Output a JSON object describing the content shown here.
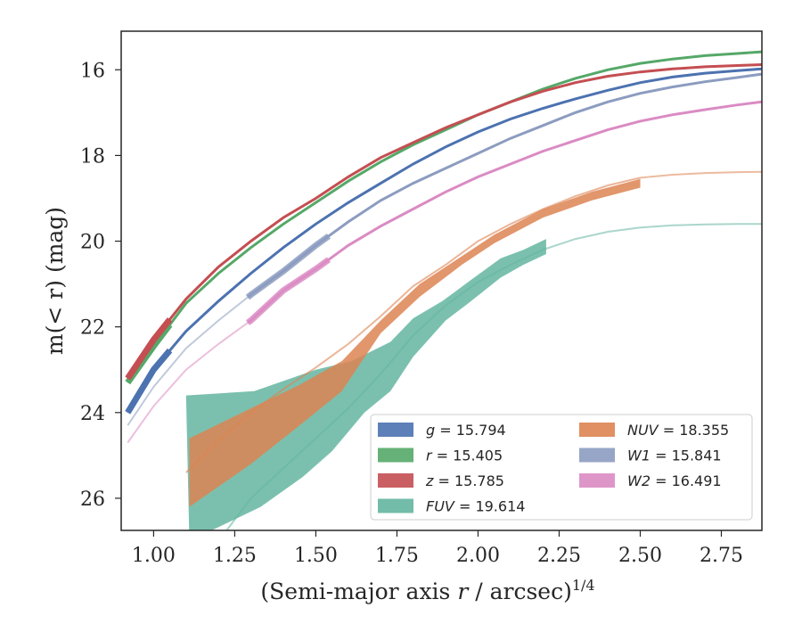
{
  "chart_data": {
    "type": "line",
    "xlabel_main": "(Semi-major axis ",
    "xlabel_var": "r",
    "xlabel_unit": " / arcsec)",
    "xlabel_exp": "1/4",
    "ylabel_main": "m(< r) (mag)",
    "xlim": [
      0.9,
      2.875
    ],
    "ylim": [
      26.75,
      15.1
    ],
    "y_inverted": true,
    "xticks": [
      1.0,
      1.25,
      1.5,
      1.75,
      2.0,
      2.25,
      2.5,
      2.75
    ],
    "xtick_labels": [
      "1.00",
      "1.25",
      "1.50",
      "1.75",
      "2.00",
      "2.25",
      "2.50",
      "2.75"
    ],
    "yticks": [
      16,
      18,
      20,
      22,
      24,
      26
    ],
    "ytick_labels": [
      "16",
      "18",
      "20",
      "22",
      "24",
      "26"
    ],
    "legend_location": "lower-right",
    "series": [
      {
        "name": "g = 15.794",
        "legend_var": "g",
        "legend_value": "= 15.794",
        "color": "#4c72b0",
        "x": [
          0.92,
          1.0,
          1.1,
          1.2,
          1.3,
          1.4,
          1.5,
          1.6,
          1.7,
          1.8,
          1.9,
          2.0,
          2.1,
          2.2,
          2.3,
          2.4,
          2.5,
          2.6,
          2.7,
          2.8,
          2.875
        ],
        "y": [
          24.0,
          23.0,
          22.1,
          21.4,
          20.75,
          20.15,
          19.6,
          19.1,
          18.65,
          18.2,
          17.8,
          17.45,
          17.15,
          16.9,
          16.68,
          16.48,
          16.3,
          16.17,
          16.08,
          16.02,
          15.98
        ],
        "band": [
          {
            "x0": 0.92,
            "x1": 1.05,
            "width": 0.25
          },
          {
            "x0": 1.05,
            "x1": 2.875,
            "width": 0.06
          }
        ]
      },
      {
        "name": "r = 15.405",
        "legend_var": "r",
        "legend_value": "= 15.405",
        "color": "#55a868",
        "x": [
          0.92,
          1.0,
          1.1,
          1.2,
          1.3,
          1.4,
          1.5,
          1.6,
          1.7,
          1.8,
          1.9,
          2.0,
          2.1,
          2.2,
          2.3,
          2.4,
          2.5,
          2.6,
          2.7,
          2.8,
          2.875
        ],
        "y": [
          23.3,
          22.45,
          21.45,
          20.75,
          20.15,
          19.6,
          19.1,
          18.6,
          18.15,
          17.75,
          17.4,
          17.05,
          16.75,
          16.45,
          16.2,
          16.0,
          15.85,
          15.75,
          15.67,
          15.62,
          15.58
        ],
        "band": [
          {
            "x0": 0.92,
            "x1": 1.05,
            "width": 0.25
          },
          {
            "x0": 1.05,
            "x1": 2.875,
            "width": 0.06
          }
        ]
      },
      {
        "name": "z = 15.785",
        "legend_var": "z",
        "legend_value": "= 15.785",
        "color": "#c44e52",
        "x": [
          0.92,
          1.0,
          1.1,
          1.2,
          1.3,
          1.4,
          1.5,
          1.6,
          1.7,
          1.8,
          1.9,
          2.0,
          2.1,
          2.2,
          2.3,
          2.4,
          2.5,
          2.6,
          2.7,
          2.8,
          2.875
        ],
        "y": [
          23.2,
          22.3,
          21.35,
          20.6,
          20.0,
          19.45,
          19.0,
          18.5,
          18.05,
          17.7,
          17.35,
          17.05,
          16.75,
          16.5,
          16.3,
          16.15,
          16.05,
          15.98,
          15.93,
          15.9,
          15.88
        ],
        "band": [
          {
            "x0": 0.92,
            "x1": 1.05,
            "width": 0.25
          },
          {
            "x0": 1.05,
            "x1": 2.875,
            "width": 0.06
          }
        ]
      },
      {
        "name": "FUV = 19.614",
        "legend_var": "FUV",
        "legend_value": "= 19.614",
        "color": "#64b5a0",
        "x": [
          1.2,
          1.3,
          1.4,
          1.5,
          1.6,
          1.7,
          1.8,
          1.9,
          2.0,
          2.1,
          2.2,
          2.3,
          2.4,
          2.5,
          2.6,
          2.7,
          2.8,
          2.875
        ],
        "y": [
          27.0,
          26.0,
          25.3,
          24.6,
          23.9,
          23.1,
          22.2,
          21.5,
          20.95,
          20.55,
          20.2,
          19.95,
          19.78,
          19.68,
          19.63,
          19.61,
          19.6,
          19.6
        ],
        "region": {
          "upper_x": [
            1.1,
            1.31,
            1.5,
            1.61,
            1.73,
            1.8,
            1.89,
            1.97,
            2.07,
            2.14,
            2.21
          ],
          "upper_y": [
            23.6,
            23.5,
            23.0,
            22.8,
            22.35,
            21.8,
            21.4,
            20.95,
            20.4,
            20.2,
            19.95
          ],
          "lower_x": [
            2.21,
            2.14,
            2.07,
            1.97,
            1.9,
            1.8,
            1.73,
            1.65,
            1.55,
            1.46,
            1.33,
            1.11
          ],
          "lower_y": [
            20.3,
            20.55,
            20.85,
            21.45,
            21.85,
            22.7,
            23.5,
            24.0,
            24.9,
            25.5,
            26.2,
            27.0
          ],
          "end_x": 2.21
        }
      },
      {
        "name": "NUV = 18.355",
        "legend_var": "NUV",
        "legend_value": "= 18.355",
        "color": "#dd8452",
        "x": [
          1.1,
          1.2,
          1.3,
          1.4,
          1.5,
          1.6,
          1.7,
          1.8,
          1.9,
          2.0,
          2.1,
          2.2,
          2.3,
          2.4,
          2.5,
          2.6,
          2.7,
          2.8,
          2.875
        ],
        "y": [
          25.4,
          24.65,
          24.0,
          23.45,
          22.95,
          22.4,
          21.75,
          21.05,
          20.55,
          20.0,
          19.6,
          19.25,
          18.95,
          18.7,
          18.52,
          18.45,
          18.41,
          18.39,
          18.38
        ],
        "region": {
          "upper_x": [
            1.11,
            1.3,
            1.45,
            1.58,
            1.7,
            1.82,
            1.95,
            2.05,
            2.2,
            2.35,
            2.5
          ],
          "upper_y": [
            24.6,
            23.9,
            23.35,
            22.8,
            21.85,
            21.0,
            20.35,
            19.85,
            19.25,
            18.85,
            18.55
          ],
          "lower_x": [
            2.5,
            2.35,
            2.2,
            2.05,
            1.95,
            1.82,
            1.7,
            1.58,
            1.45,
            1.3,
            1.11
          ],
          "lower_y": [
            18.75,
            19.05,
            19.45,
            20.05,
            20.55,
            21.3,
            22.15,
            23.5,
            24.3,
            25.2,
            26.2
          ],
          "end_x": 2.5
        }
      },
      {
        "name": "W1 = 15.841",
        "legend_var": "W1",
        "legend_value": "= 15.841",
        "color": "#8c9cc0",
        "x": [
          0.92,
          1.0,
          1.1,
          1.2,
          1.3,
          1.4,
          1.5,
          1.6,
          1.7,
          1.8,
          1.9,
          2.0,
          2.1,
          2.2,
          2.3,
          2.4,
          2.5,
          2.6,
          2.7,
          2.8,
          2.875
        ],
        "y": [
          24.3,
          23.4,
          22.5,
          21.85,
          21.25,
          20.7,
          20.1,
          19.55,
          19.05,
          18.65,
          18.3,
          17.95,
          17.6,
          17.3,
          17.0,
          16.75,
          16.55,
          16.4,
          16.28,
          16.18,
          16.1
        ],
        "thick_from": 1.29
      },
      {
        "name": "W2 = 16.491",
        "legend_var": "W2",
        "legend_value": "= 16.491",
        "color": "#da8bc3",
        "x": [
          0.92,
          1.0,
          1.1,
          1.2,
          1.3,
          1.4,
          1.5,
          1.6,
          1.7,
          1.8,
          1.9,
          2.0,
          2.1,
          2.2,
          2.3,
          2.4,
          2.5,
          2.6,
          2.7,
          2.8,
          2.875
        ],
        "y": [
          24.7,
          23.85,
          23.0,
          22.4,
          21.85,
          21.15,
          20.65,
          20.1,
          19.65,
          19.25,
          18.85,
          18.5,
          18.2,
          17.9,
          17.65,
          17.4,
          17.2,
          17.05,
          16.93,
          16.82,
          16.75
        ],
        "thick_from": 1.29
      }
    ]
  }
}
